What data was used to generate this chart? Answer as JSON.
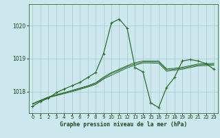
{
  "title": "Graphe pression niveau de la mer (hPa)",
  "background_color": "#cce8ee",
  "grid_color": "#aaccd4",
  "line_color": "#2d6e2d",
  "xlim": [
    -0.5,
    23.5
  ],
  "ylim": [
    1017.35,
    1020.65
  ],
  "yticks": [
    1018,
    1019,
    1020
  ],
  "xticks": [
    0,
    1,
    2,
    3,
    4,
    5,
    6,
    7,
    8,
    9,
    10,
    11,
    12,
    13,
    14,
    15,
    16,
    17,
    18,
    19,
    20,
    21,
    22,
    23
  ],
  "series_flat": [
    {
      "x": [
        0,
        1,
        2,
        3,
        4,
        5,
        6,
        7,
        8,
        9,
        10,
        11,
        12,
        13,
        14,
        15,
        16,
        17,
        18,
        19,
        20,
        21,
        22,
        23
      ],
      "y": [
        1017.62,
        1017.73,
        1017.82,
        1017.88,
        1017.94,
        1018.0,
        1018.07,
        1018.14,
        1018.22,
        1018.38,
        1018.5,
        1018.61,
        1018.72,
        1018.8,
        1018.87,
        1018.87,
        1018.86,
        1018.62,
        1018.65,
        1018.68,
        1018.73,
        1018.78,
        1018.79,
        1018.8
      ],
      "marker": false
    },
    {
      "x": [
        0,
        1,
        2,
        3,
        4,
        5,
        6,
        7,
        8,
        9,
        10,
        11,
        12,
        13,
        14,
        15,
        16,
        17,
        18,
        19,
        20,
        21,
        22,
        23
      ],
      "y": [
        1017.63,
        1017.73,
        1017.83,
        1017.89,
        1017.96,
        1018.02,
        1018.09,
        1018.16,
        1018.25,
        1018.41,
        1018.55,
        1018.65,
        1018.76,
        1018.84,
        1018.9,
        1018.9,
        1018.9,
        1018.66,
        1018.68,
        1018.71,
        1018.76,
        1018.81,
        1018.82,
        1018.83
      ],
      "marker": false
    },
    {
      "x": [
        0,
        1,
        2,
        3,
        4,
        5,
        6,
        7,
        8,
        9,
        10,
        11,
        12,
        13,
        14,
        15,
        16,
        17,
        18,
        19,
        20,
        21,
        22,
        23
      ],
      "y": [
        1017.64,
        1017.74,
        1017.84,
        1017.91,
        1017.97,
        1018.04,
        1018.11,
        1018.18,
        1018.27,
        1018.44,
        1018.58,
        1018.68,
        1018.79,
        1018.88,
        1018.93,
        1018.93,
        1018.93,
        1018.69,
        1018.71,
        1018.74,
        1018.79,
        1018.84,
        1018.85,
        1018.86
      ],
      "marker": false
    }
  ],
  "series_main": {
    "x": [
      0,
      1,
      2,
      3,
      4,
      5,
      6,
      7,
      8,
      9,
      10,
      11,
      12,
      13,
      14,
      15,
      16,
      17,
      18,
      19,
      20,
      21,
      22,
      23
    ],
    "y": [
      1017.56,
      1017.7,
      1017.8,
      1017.97,
      1018.08,
      1018.18,
      1018.28,
      1018.43,
      1018.58,
      1019.15,
      1020.08,
      1020.2,
      1019.92,
      1018.73,
      1018.6,
      1017.66,
      1017.52,
      1018.13,
      1018.43,
      1018.93,
      1018.97,
      1018.93,
      1018.85,
      1018.68
    ],
    "marker": true
  }
}
